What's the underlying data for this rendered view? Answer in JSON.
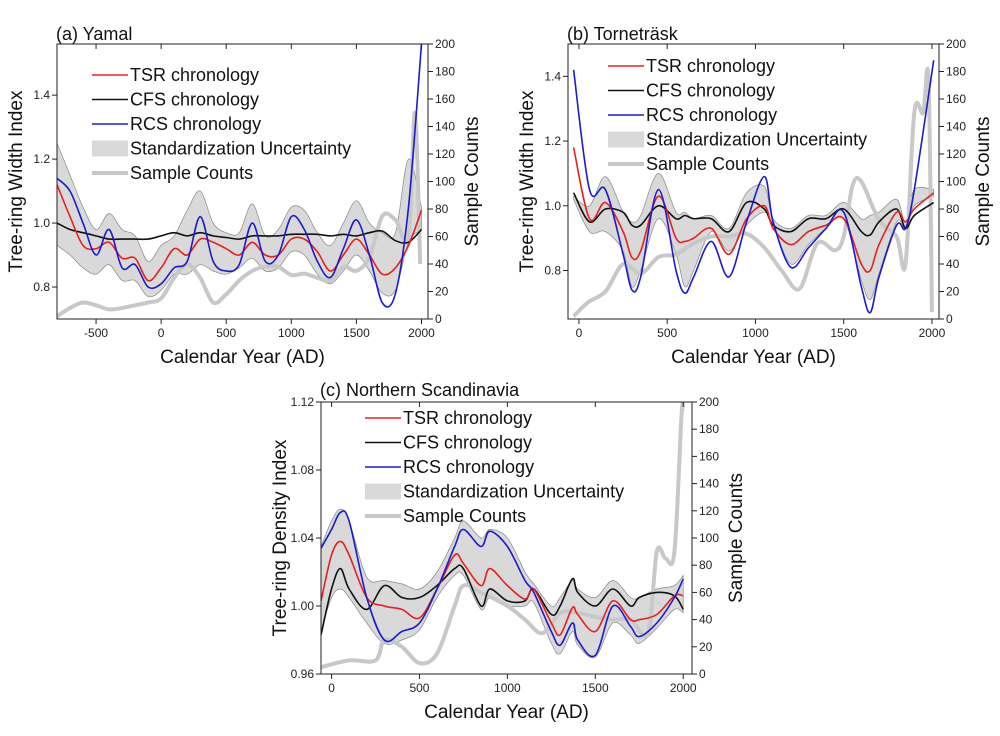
{
  "chart_data": [
    {
      "type": "line",
      "title": "(a) Yamal",
      "xlabel": "Calendar Year (AD)",
      "ylabel": "Tree-ring Width Index",
      "y2label": "Sample Counts",
      "xlim": [
        -800,
        2050
      ],
      "ylim": [
        0.7,
        1.56
      ],
      "y2lim": [
        0,
        200
      ],
      "xticks": [
        -500,
        0,
        500,
        1000,
        1500,
        2000
      ],
      "yticks": [
        0.8,
        1.0,
        1.2,
        1.4
      ],
      "ytick_labels": [
        "0.8",
        "1.0",
        "1.2",
        "1.4"
      ],
      "y2ticks": [
        0,
        20,
        40,
        60,
        80,
        100,
        120,
        140,
        160,
        180,
        200
      ],
      "legend": [
        "TSR chronology",
        "CFS chronology",
        "RCS chronology",
        "Standardization Uncertainty",
        "Sample Counts"
      ],
      "legend_position": "top-left",
      "x": [
        -800,
        -700,
        -600,
        -500,
        -400,
        -300,
        -200,
        -100,
        0,
        100,
        200,
        300,
        400,
        500,
        600,
        700,
        800,
        900,
        1000,
        1100,
        1200,
        1300,
        1400,
        1500,
        1600,
        1700,
        1800,
        1900,
        2000
      ],
      "series": [
        {
          "name": "TSR chronology",
          "color": "#e8201e",
          "values": [
            1.12,
            1.02,
            0.93,
            0.92,
            0.94,
            0.89,
            0.89,
            0.82,
            0.86,
            0.92,
            0.9,
            0.95,
            0.94,
            0.92,
            0.9,
            0.94,
            0.9,
            0.9,
            0.95,
            0.95,
            0.91,
            0.85,
            0.9,
            0.95,
            0.9,
            0.84,
            0.86,
            0.93,
            1.04
          ]
        },
        {
          "name": "CFS chronology",
          "color": "#111111",
          "values": [
            1.0,
            0.98,
            0.97,
            0.96,
            0.95,
            0.95,
            0.95,
            0.95,
            0.96,
            0.97,
            0.96,
            0.97,
            0.96,
            0.955,
            0.95,
            0.96,
            0.96,
            0.96,
            0.965,
            0.965,
            0.965,
            0.96,
            0.965,
            0.96,
            0.97,
            0.975,
            0.945,
            0.94,
            0.98
          ]
        },
        {
          "name": "RCS chronology",
          "color": "#1a1ad0",
          "values": [
            1.14,
            1.1,
            1.0,
            0.9,
            0.98,
            0.86,
            0.87,
            0.8,
            0.81,
            0.86,
            0.88,
            1.02,
            0.88,
            0.85,
            0.87,
            1.0,
            0.88,
            0.9,
            1.02,
            0.98,
            0.88,
            0.83,
            0.92,
            1.01,
            0.9,
            0.75,
            0.78,
            1.05,
            1.56
          ]
        }
      ],
      "band": {
        "name": "Standardization Uncertainty",
        "color": "#d9d9d9",
        "upper": [
          1.25,
          1.15,
          1.05,
          0.98,
          1.03,
          0.98,
          0.96,
          0.88,
          0.93,
          0.96,
          1.04,
          1.1,
          1.0,
          0.97,
          0.97,
          1.06,
          0.96,
          0.98,
          1.05,
          1.04,
          0.97,
          0.93,
          1.0,
          1.07,
          1.0,
          0.97,
          0.97,
          1.2,
          1.05
        ],
        "lower": [
          0.93,
          0.9,
          0.86,
          0.84,
          0.87,
          0.82,
          0.82,
          0.77,
          0.79,
          0.84,
          0.84,
          0.87,
          0.85,
          0.84,
          0.86,
          0.89,
          0.85,
          0.86,
          0.91,
          0.9,
          0.84,
          0.81,
          0.85,
          0.9,
          0.85,
          0.78,
          0.79,
          0.94,
          0.98
        ]
      },
      "sample_counts": {
        "name": "Sample Counts",
        "color": "#c8c8c8",
        "x": [
          -800,
          -700,
          -600,
          -500,
          -400,
          -300,
          -200,
          -100,
          0,
          100,
          200,
          300,
          400,
          500,
          600,
          700,
          800,
          900,
          1000,
          1100,
          1200,
          1300,
          1400,
          1500,
          1600,
          1700,
          1800,
          1900,
          1950,
          1990
        ],
        "values": [
          2,
          8,
          12,
          10,
          7,
          8,
          10,
          12,
          15,
          30,
          40,
          30,
          12,
          18,
          28,
          35,
          38,
          38,
          32,
          33,
          30,
          28,
          38,
          35,
          45,
          75,
          72,
          60,
          150,
          40
        ]
      }
    },
    {
      "type": "line",
      "title": "(b) Torneträsk",
      "xlabel": "Calendar Year (AD)",
      "ylabel": "Tree-ring Width Index",
      "y2label": "Sample Counts",
      "xlim": [
        -62,
        2040
      ],
      "ylim": [
        0.65,
        1.5
      ],
      "y2lim": [
        0,
        200
      ],
      "xticks": [
        0,
        500,
        1000,
        1500,
        2000
      ],
      "yticks": [
        0.8,
        1.0,
        1.2,
        1.4
      ],
      "ytick_labels": [
        "0.8",
        "1.0",
        "1.2",
        "1.4"
      ],
      "y2ticks": [
        0,
        20,
        40,
        60,
        80,
        100,
        120,
        140,
        160,
        180,
        200
      ],
      "legend": [
        "TSR chronology",
        "CFS chronology",
        "RCS chronology",
        "Standardization Uncertainty",
        "Sample Counts"
      ],
      "legend_position": "top-left",
      "x": [
        -30,
        60,
        150,
        250,
        300,
        350,
        450,
        550,
        600,
        650,
        750,
        850,
        950,
        1050,
        1100,
        1200,
        1300,
        1400,
        1500,
        1600,
        1650,
        1700,
        1800,
        1850,
        1900,
        2010
      ],
      "series": [
        {
          "name": "TSR chronology",
          "color": "#e8201e",
          "values": [
            1.18,
            0.96,
            1.01,
            0.92,
            0.84,
            0.86,
            1.03,
            0.9,
            0.89,
            0.9,
            0.93,
            0.85,
            0.96,
            1.0,
            0.93,
            0.88,
            0.92,
            0.94,
            0.96,
            0.82,
            0.8,
            0.88,
            0.98,
            0.95,
            0.99,
            1.04
          ]
        },
        {
          "name": "CFS chronology",
          "color": "#111111",
          "values": [
            1.04,
            0.95,
            0.99,
            0.98,
            0.94,
            0.94,
            1.0,
            0.96,
            0.97,
            0.96,
            0.96,
            0.92,
            1.01,
            0.99,
            0.94,
            0.92,
            0.96,
            0.96,
            0.99,
            0.92,
            0.91,
            0.95,
            0.99,
            0.93,
            0.97,
            1.01
          ]
        },
        {
          "name": "RCS chronology",
          "color": "#1a1ad0",
          "values": [
            1.42,
            1.05,
            1.05,
            0.85,
            0.74,
            0.78,
            1.05,
            0.8,
            0.73,
            0.78,
            0.89,
            0.78,
            0.95,
            1.09,
            0.95,
            0.81,
            0.87,
            0.93,
            0.98,
            0.75,
            0.67,
            0.78,
            0.94,
            0.93,
            1.05,
            1.45
          ]
        }
      ],
      "band": {
        "name": "Standardization Uncertainty",
        "color": "#d9d9d9",
        "upper": [
          1.03,
          1.0,
          1.09,
          0.98,
          0.95,
          0.97,
          1.1,
          0.98,
          0.98,
          0.96,
          0.97,
          0.93,
          1.04,
          1.06,
          0.96,
          0.93,
          0.97,
          0.97,
          1.01,
          0.96,
          0.97,
          0.98,
          1.02,
          0.95,
          1.05,
          1.05
        ],
        "lower": [
          1.02,
          0.92,
          0.92,
          0.86,
          0.75,
          0.8,
          0.96,
          0.85,
          0.75,
          0.8,
          0.92,
          0.86,
          0.94,
          0.98,
          0.94,
          0.82,
          0.88,
          0.93,
          0.96,
          0.77,
          0.71,
          0.79,
          0.95,
          0.93,
          1.0,
          1.03
        ]
      },
      "sample_counts": {
        "name": "Sample Counts",
        "color": "#c8c8c8",
        "x": [
          -30,
          50,
          150,
          250,
          350,
          450,
          550,
          650,
          750,
          850,
          950,
          1050,
          1150,
          1250,
          1350,
          1450,
          1500,
          1550,
          1600,
          1700,
          1800,
          1850,
          1900,
          1950,
          1980,
          2000
        ],
        "values": [
          2,
          12,
          20,
          40,
          33,
          45,
          47,
          55,
          60,
          60,
          62,
          52,
          35,
          22,
          55,
          50,
          60,
          97,
          100,
          72,
          60,
          40,
          150,
          150,
          175,
          5
        ]
      }
    },
    {
      "type": "line",
      "title": "(c) Northern Scandinavia",
      "xlabel": "Calendar Year (AD)",
      "ylabel": "Tree-ring Density Index",
      "y2label": "Sample Counts",
      "xlim": [
        -60,
        2050
      ],
      "ylim": [
        0.96,
        1.12
      ],
      "y2lim": [
        0,
        200
      ],
      "xticks": [
        0,
        500,
        1000,
        1500,
        2000
      ],
      "yticks": [
        0.96,
        1.0,
        1.04,
        1.08,
        1.12
      ],
      "ytick_labels": [
        "0.96",
        "1.00",
        "1.04",
        "1.08",
        "1.12"
      ],
      "y2ticks": [
        0,
        20,
        40,
        60,
        80,
        100,
        120,
        140,
        160,
        180,
        200
      ],
      "legend": [
        "TSR chronology",
        "CFS chronology",
        "RCS chronology",
        "Standardization Uncertainty",
        "Sample Counts"
      ],
      "legend_position": "top-left",
      "x": [
        -60,
        0,
        50,
        100,
        200,
        300,
        400,
        500,
        600,
        700,
        750,
        850,
        900,
        1000,
        1100,
        1150,
        1250,
        1300,
        1370,
        1400,
        1500,
        1600,
        1700,
        1750,
        1850,
        1950,
        2000
      ],
      "series": [
        {
          "name": "TSR chronology",
          "color": "#e8201e",
          "values": [
            1.003,
            1.03,
            1.038,
            1.03,
            1.005,
            1.0,
            0.998,
            0.993,
            1.01,
            1.03,
            1.025,
            1.012,
            1.022,
            1.012,
            1.004,
            1.01,
            0.99,
            0.983,
            0.999,
            0.995,
            0.985,
            1.003,
            0.992,
            0.992,
            0.995,
            1.006,
            1.006
          ]
        },
        {
          "name": "CFS chronology",
          "color": "#111111",
          "values": [
            0.983,
            1.01,
            1.022,
            1.01,
            0.998,
            1.012,
            1.005,
            1.005,
            1.012,
            1.022,
            1.022,
            1.0,
            1.01,
            1.003,
            1.003,
            1.01,
            0.995,
            1.0,
            1.016,
            1.008,
            1.0,
            1.01,
            1.0,
            1.005,
            1.008,
            1.006,
            0.998
          ]
        },
        {
          "name": "RCS chronology",
          "color": "#1a1ad0",
          "values": [
            1.034,
            1.045,
            1.055,
            1.05,
            1.005,
            0.98,
            0.985,
            0.99,
            1.01,
            1.035,
            1.045,
            1.035,
            1.044,
            1.035,
            1.015,
            1.008,
            0.985,
            0.977,
            0.99,
            0.98,
            0.971,
            1.0,
            0.988,
            0.982,
            0.99,
            1.005,
            1.016
          ]
        }
      ],
      "band": {
        "name": "Standardization Uncertainty",
        "color": "#d9d9d9",
        "upper": [
          1.035,
          1.05,
          1.057,
          1.05,
          1.017,
          1.015,
          1.013,
          1.01,
          1.02,
          1.04,
          1.05,
          1.04,
          1.045,
          1.04,
          1.02,
          1.013,
          1.0,
          1.005,
          1.015,
          1.01,
          1.005,
          1.015,
          1.005,
          1.005,
          1.01,
          1.012,
          1.018
        ],
        "lower": [
          0.985,
          1.005,
          1.01,
          1.005,
          0.99,
          0.978,
          0.98,
          0.986,
          1.005,
          1.018,
          1.018,
          0.998,
          1.005,
          1.0,
          1.0,
          1.002,
          0.978,
          0.972,
          0.985,
          0.977,
          0.97,
          0.99,
          0.983,
          0.978,
          0.987,
          0.998,
          0.996
        ]
      },
      "sample_counts": {
        "name": "Sample Counts",
        "color": "#c8c8c8",
        "x": [
          -60,
          100,
          250,
          300,
          400,
          500,
          600,
          700,
          750,
          850,
          1000,
          1100,
          1200,
          1300,
          1400,
          1500,
          1600,
          1700,
          1800,
          1850,
          1900,
          1950,
          1990,
          2000
        ],
        "values": [
          5,
          10,
          10,
          25,
          20,
          8,
          15,
          50,
          65,
          60,
          50,
          40,
          30,
          45,
          45,
          42,
          40,
          40,
          30,
          90,
          85,
          90,
          190,
          195
        ]
      }
    }
  ]
}
